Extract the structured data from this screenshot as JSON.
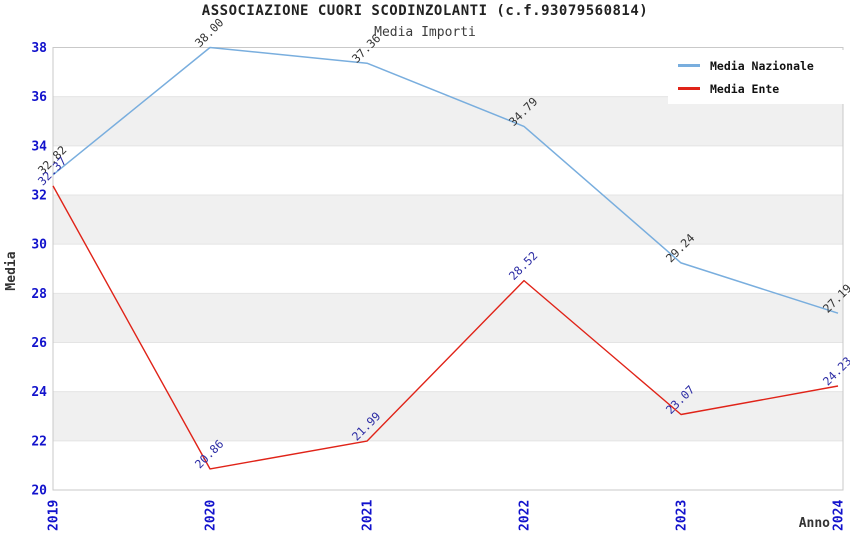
{
  "title": "ASSOCIAZIONE CUORI SCODINZOLANTI (c.f.93079560814)",
  "subtitle": "Media Importi",
  "chart_data": {
    "type": "line",
    "x": [
      "2019",
      "2020",
      "2021",
      "2022",
      "2023",
      "2024"
    ],
    "series": [
      {
        "name": "Media Nazionale",
        "color": "#79aede",
        "label_color": "#333333",
        "values": [
          32.82,
          38.0,
          37.36,
          34.79,
          29.24,
          27.19
        ]
      },
      {
        "name": "Media Ente",
        "color": "#e02318",
        "label_color": "#2b2ba4",
        "values": [
          32.37,
          20.86,
          21.99,
          28.52,
          23.07,
          24.23
        ]
      }
    ],
    "xlabel": "Anno",
    "ylabel": "Media",
    "ylim": [
      20,
      38
    ],
    "yticks": [
      20,
      22,
      24,
      26,
      28,
      30,
      32,
      34,
      36,
      38
    ],
    "grid": true,
    "band_fill": "alternating-gray-white",
    "band_color": "#f0f0f0",
    "gridline_color": "#e4e4e4",
    "spine_color": "#c9c9c9",
    "tick_label_color": "#1212cc",
    "axis_label_color": "#333333",
    "legend_position": "top-right",
    "point_label_format": "2-decimals",
    "point_label_rotation": -45
  }
}
